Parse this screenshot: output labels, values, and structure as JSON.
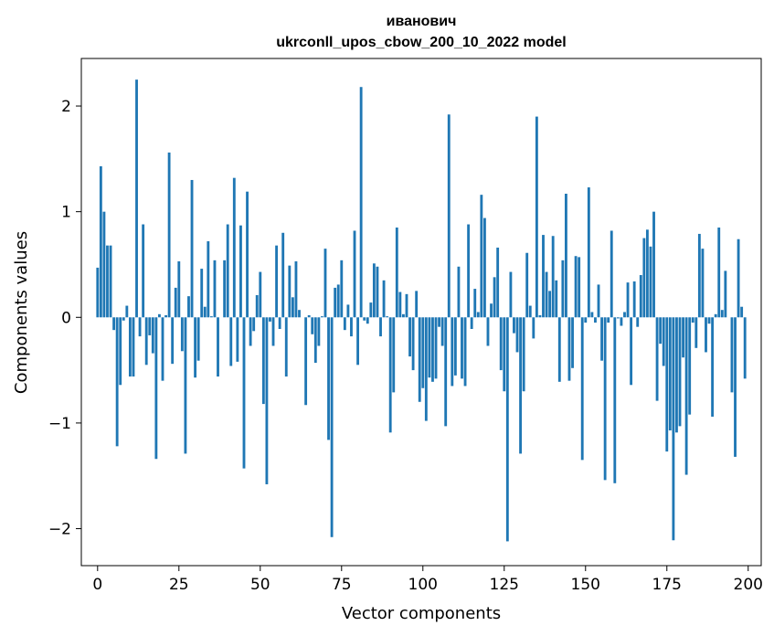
{
  "chart_data": {
    "type": "bar",
    "title_line1": "иванович",
    "title_line2": "ukrconll_upos_cbow_200_10_2022 model",
    "xlabel": "Vector components",
    "ylabel": "Components values",
    "xlim": [
      -5,
      204
    ],
    "ylim": [
      -2.35,
      2.45
    ],
    "xticks": [
      0,
      25,
      50,
      75,
      100,
      125,
      150,
      175,
      200
    ],
    "xtick_labels": [
      "0",
      "25",
      "50",
      "75",
      "100",
      "125",
      "150",
      "175",
      "200"
    ],
    "yticks": [
      -2,
      -1,
      0,
      1,
      2
    ],
    "ytick_labels": [
      "−2",
      "−1",
      "0",
      "1",
      "2"
    ],
    "bar_color": "#1f77b4",
    "x": [
      0,
      1,
      2,
      3,
      4,
      5,
      6,
      7,
      8,
      9,
      10,
      11,
      12,
      13,
      14,
      15,
      16,
      17,
      18,
      19,
      20,
      21,
      22,
      23,
      24,
      25,
      26,
      27,
      28,
      29,
      30,
      31,
      32,
      33,
      34,
      35,
      36,
      37,
      38,
      39,
      40,
      41,
      42,
      43,
      44,
      45,
      46,
      47,
      48,
      49,
      50,
      51,
      52,
      53,
      54,
      55,
      56,
      57,
      58,
      59,
      60,
      61,
      62,
      63,
      64,
      65,
      66,
      67,
      68,
      69,
      70,
      71,
      72,
      73,
      74,
      75,
      76,
      77,
      78,
      79,
      80,
      81,
      82,
      83,
      84,
      85,
      86,
      87,
      88,
      89,
      90,
      91,
      92,
      93,
      94,
      95,
      96,
      97,
      98,
      99,
      100,
      101,
      102,
      103,
      104,
      105,
      106,
      107,
      108,
      109,
      110,
      111,
      112,
      113,
      114,
      115,
      116,
      117,
      118,
      119,
      120,
      121,
      122,
      123,
      124,
      125,
      126,
      127,
      128,
      129,
      130,
      131,
      132,
      133,
      134,
      135,
      136,
      137,
      138,
      139,
      140,
      141,
      142,
      143,
      144,
      145,
      146,
      147,
      148,
      149,
      150,
      151,
      152,
      153,
      154,
      155,
      156,
      157,
      158,
      159,
      160,
      161,
      162,
      163,
      164,
      165,
      166,
      167,
      168,
      169,
      170,
      171,
      172,
      173,
      174,
      175,
      176,
      177,
      178,
      179,
      180,
      181,
      182,
      183,
      184,
      185,
      186,
      187,
      188,
      189,
      190,
      191,
      192,
      193,
      194,
      195,
      196,
      197,
      198,
      199
    ],
    "values": [
      0.47,
      1.43,
      1.0,
      0.68,
      0.68,
      -0.12,
      -1.22,
      -0.64,
      -0.03,
      0.11,
      -0.56,
      -0.56,
      2.25,
      -0.18,
      0.88,
      -0.45,
      -0.17,
      -0.34,
      -1.34,
      0.03,
      -0.6,
      0.02,
      1.56,
      -0.44,
      0.28,
      0.53,
      -0.32,
      -1.29,
      0.2,
      1.3,
      -0.57,
      -0.41,
      0.46,
      0.1,
      0.72,
      0.01,
      0.54,
      -0.56,
      0.0,
      0.54,
      0.88,
      -0.46,
      1.32,
      -0.42,
      0.87,
      -1.43,
      1.19,
      -0.27,
      -0.13,
      0.21,
      0.43,
      -0.82,
      -1.58,
      -0.04,
      -0.27,
      0.68,
      -0.11,
      0.8,
      -0.56,
      0.49,
      0.19,
      0.53,
      0.07,
      0.0,
      -0.83,
      0.02,
      -0.16,
      -0.43,
      -0.27,
      0.01,
      0.65,
      -1.16,
      -2.08,
      0.28,
      0.31,
      0.54,
      -0.12,
      0.12,
      -0.18,
      0.82,
      -0.45,
      2.18,
      -0.03,
      -0.06,
      0.14,
      0.51,
      0.48,
      -0.18,
      0.35,
      0.01,
      -1.09,
      -0.71,
      0.85,
      0.24,
      0.03,
      0.22,
      -0.37,
      -0.5,
      0.25,
      -0.8,
      -0.67,
      -0.98,
      -0.57,
      -0.61,
      -0.58,
      -0.09,
      -0.27,
      -1.03,
      1.92,
      -0.65,
      -0.55,
      0.48,
      -0.58,
      -0.65,
      0.88,
      -0.11,
      0.27,
      0.05,
      1.16,
      0.94,
      -0.27,
      0.13,
      0.38,
      0.66,
      -0.5,
      -0.7,
      -2.12,
      0.43,
      -0.15,
      -0.33,
      -1.29,
      -0.7,
      0.61,
      0.11,
      -0.2,
      1.9,
      0.02,
      0.78,
      0.43,
      0.25,
      0.77,
      0.35,
      -0.61,
      0.54,
      1.17,
      -0.6,
      -0.48,
      0.58,
      0.57,
      -1.35,
      -0.05,
      1.23,
      0.05,
      -0.05,
      0.31,
      -0.41,
      -1.54,
      -0.05,
      0.82,
      -1.57,
      -0.01,
      -0.08,
      0.05,
      0.33,
      -0.64,
      0.34,
      -0.09,
      0.4,
      0.75,
      0.83,
      0.67,
      1.0,
      -0.79,
      -0.25,
      -0.46,
      -1.27,
      -1.07,
      -2.11,
      -1.09,
      -1.03,
      -0.38,
      -1.49,
      -0.92,
      -0.05,
      -0.29,
      0.79,
      0.65,
      -0.33,
      -0.06,
      -0.94,
      0.03,
      0.85,
      0.07,
      0.44,
      0.0,
      -0.71,
      -1.32,
      0.74,
      0.1,
      -0.58
    ]
  }
}
